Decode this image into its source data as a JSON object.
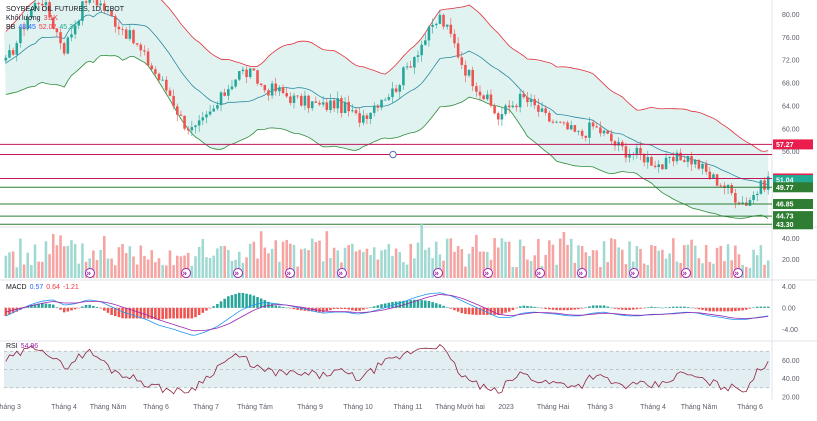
{
  "header": {
    "symbol": "SOYBEAN OIL FUTURES, 1D, CBOT",
    "volume_label": "Khối lượng",
    "volume_value": "3.1K",
    "bb_label": "BB",
    "bb_length": "48.45",
    "bb_upper": "52.02",
    "bb_lower": "45.35",
    "macd_label": "MACD",
    "macd_value": "0.57",
    "macd_signal": "0.64",
    "macd_hist": "-1.21",
    "rsi_label": "RSI",
    "rsi_value": "54.96"
  },
  "colors": {
    "up": "#26a69a",
    "down": "#ef5350",
    "bb_upper": "#e0303c",
    "bb_lower": "#2e8b3a",
    "bb_basis": "#2a8aa0",
    "bb_fill": "#d9f0ee",
    "hline_red": "#c2185b",
    "hline_green": "#2e7d32",
    "rsi_line": "#8e2440",
    "rsi_band": "#e3eef2",
    "macd_line": "#2196f3",
    "signal_line": "#9c27b0"
  },
  "chart_data": [
    {
      "type": "candlestick",
      "title": "SOYBEAN OIL FUTURES, 1D, CBOT",
      "x_ticks": [
        "Tháng 3",
        "Tháng 4",
        "Tháng Năm",
        "Tháng 6",
        "Tháng 7",
        "Tháng Tám",
        "Tháng 9",
        "Tháng 10",
        "Tháng 11",
        "Tháng Mười hai",
        "2023",
        "Tháng Hai",
        "Tháng 3",
        "Tháng 4",
        "Tháng Năm",
        "Tháng 6"
      ],
      "y_ticks": [
        80,
        76,
        72,
        68,
        64,
        60,
        56
      ],
      "ylim": [
        43,
        82
      ],
      "closes": [
        71.5,
        75.5,
        80.5,
        83,
        78.5,
        74,
        79,
        83.5,
        82,
        79.5,
        77.5,
        75,
        72,
        69,
        66,
        61.5,
        59.5,
        61.5,
        64,
        67.5,
        70,
        69.5,
        67,
        66.8,
        65.8,
        64.8,
        64.5,
        63.8,
        64.5,
        63.5,
        61.8,
        63.2,
        65.5,
        66.5,
        70,
        73.5,
        76.5,
        79.5,
        76,
        71,
        68,
        65,
        62,
        64,
        65.5,
        64,
        62,
        60.8,
        59.8,
        58.8,
        60.5,
        59.2,
        57.2,
        56,
        55.5,
        54.5,
        53.5,
        54.5,
        55.2,
        53.8,
        51.8,
        50.5,
        48.5,
        47,
        49,
        51.2
      ],
      "price_lines": [
        {
          "value": 57.27,
          "label": "57.27",
          "color": "red"
        },
        {
          "value": 55.5,
          "label": "",
          "color": "red"
        },
        {
          "value": 51.31,
          "label": "51.31",
          "color": "red"
        },
        {
          "value": 51.04,
          "label": "51.04",
          "color": "current"
        },
        {
          "value": 49.77,
          "label": "49.77",
          "color": "green"
        },
        {
          "value": 46.85,
          "label": "46.85",
          "color": "green"
        },
        {
          "value": 44.73,
          "label": "44.73",
          "color": "green"
        },
        {
          "value": 43.3,
          "label": "43.30",
          "color": "green"
        }
      ],
      "axis_labels": [
        "80.00",
        "76.00",
        "72.00",
        "68.00",
        "64.00",
        "60.00",
        "56.00"
      ]
    },
    {
      "type": "bar",
      "title": "Khối lượng",
      "y_ticks": [
        "40.00",
        "20.00"
      ]
    },
    {
      "type": "line",
      "title": "MACD",
      "y_ticks": [
        "4.00",
        "0.00",
        "-4.00"
      ],
      "ylim": [
        -6,
        5
      ],
      "macd": [
        -1.5,
        -0.5,
        0.5,
        1.2,
        1.5,
        0.5,
        0.8,
        1.5,
        1.2,
        0.2,
        -0.8,
        -1.5,
        -2.2,
        -3.2,
        -3.8,
        -4.5,
        -5.2,
        -4.5,
        -3.5,
        -2,
        -0.5,
        0.5,
        1,
        0.8,
        0.5,
        0,
        -0.5,
        -1,
        -0.8,
        -0.8,
        -1.2,
        -0.8,
        -0.2,
        0.5,
        1.2,
        2,
        2.6,
        2.8,
        2.2,
        1.2,
        0.2,
        -0.8,
        -1.8,
        -1.8,
        -1,
        -0.8,
        -1,
        -1.2,
        -1.5,
        -1.5,
        -1,
        -0.8,
        -1.2,
        -1.5,
        -1.5,
        -1.2,
        -1.2,
        -1,
        -0.8,
        -1,
        -1.5,
        -1.8,
        -2.2,
        -2.2,
        -1.8,
        -1.5
      ],
      "signal": [
        -0.8,
        -0.2,
        0.3,
        0.8,
        1.2,
        0.9,
        0.9,
        1.2,
        1.2,
        0.8,
        0.1,
        -0.6,
        -1.3,
        -2.2,
        -2.9,
        -3.6,
        -4.3,
        -4.2,
        -3.8,
        -3,
        -1.8,
        -0.6,
        0.3,
        0.6,
        0.5,
        0.2,
        -0.2,
        -0.6,
        -0.7,
        -0.7,
        -0.9,
        -0.8,
        -0.5,
        0,
        0.6,
        1.3,
        2,
        2.5,
        2.3,
        1.7,
        0.8,
        -0.2,
        -1.2,
        -1.5,
        -1.2,
        -0.9,
        -0.9,
        -1,
        -1.3,
        -1.4,
        -1.2,
        -1,
        -1.1,
        -1.3,
        -1.4,
        -1.3,
        -1.2,
        -1.1,
        -0.9,
        -0.9,
        -1.2,
        -1.5,
        -1.9,
        -2,
        -1.9,
        -1.6
      ]
    },
    {
      "type": "line",
      "title": "RSI",
      "y_ticks": [
        "60.00",
        "40.00",
        "20.00"
      ],
      "ylim": [
        20,
        80
      ],
      "band": [
        30,
        70
      ],
      "rsi": [
        60,
        66,
        72,
        76,
        62,
        52,
        62,
        70,
        62,
        50,
        45,
        40,
        35,
        30,
        28,
        25,
        30,
        40,
        52,
        62,
        64,
        56,
        48,
        47,
        46,
        44,
        45,
        43,
        48,
        46,
        40,
        46,
        56,
        60,
        66,
        72,
        75,
        77,
        58,
        42,
        35,
        28,
        25,
        38,
        46,
        40,
        36,
        35,
        34,
        32,
        44,
        40,
        34,
        32,
        33,
        32,
        34,
        42,
        46,
        40,
        36,
        32,
        30,
        28,
        46,
        55
      ]
    }
  ]
}
